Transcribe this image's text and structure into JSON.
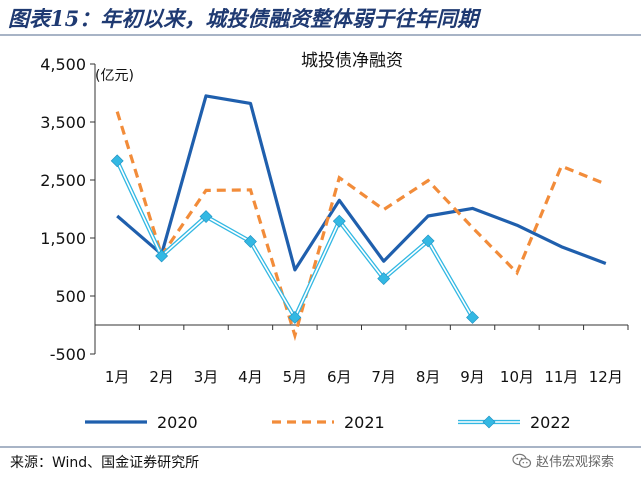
{
  "header": {
    "title": "图表15：年初以来，城投债融资整体弱于往年同期"
  },
  "chart_data": {
    "type": "line",
    "title": "城投债净融资",
    "ylabel": "(亿元)",
    "xlabel": "",
    "ylim": [
      -500,
      4500
    ],
    "yticks": [
      -500,
      500,
      1500,
      2500,
      3500,
      4500
    ],
    "ytick_labels": [
      "-500",
      "500",
      "1,500",
      "2,500",
      "3,500",
      "4,500"
    ],
    "categories": [
      "1月",
      "2月",
      "3月",
      "4月",
      "5月",
      "6月",
      "7月",
      "8月",
      "9月",
      "10月",
      "11月",
      "12月"
    ],
    "legend_position": "bottom",
    "series": [
      {
        "name": "2020",
        "color": "#1f5fad",
        "style": "solid",
        "values": [
          1880,
          1220,
          3950,
          3820,
          950,
          2150,
          1100,
          1880,
          2010,
          1720,
          1350,
          1060
        ]
      },
      {
        "name": "2021",
        "color": "#f28c3a",
        "style": "dashed",
        "values": [
          3680,
          1200,
          2320,
          2330,
          -180,
          2540,
          1990,
          2490,
          1680,
          900,
          2740,
          2430
        ]
      },
      {
        "name": "2022",
        "color": "#33b8e3",
        "style": "double-with-diamond",
        "values": [
          2830,
          1190,
          1870,
          1440,
          130,
          1790,
          800,
          1450,
          130,
          null,
          null,
          null
        ]
      }
    ]
  },
  "footer": {
    "source": "来源：Wind、国金证券研究所",
    "watermark": "赵伟宏观探索",
    "watermark_icon": "wechat-icon"
  }
}
